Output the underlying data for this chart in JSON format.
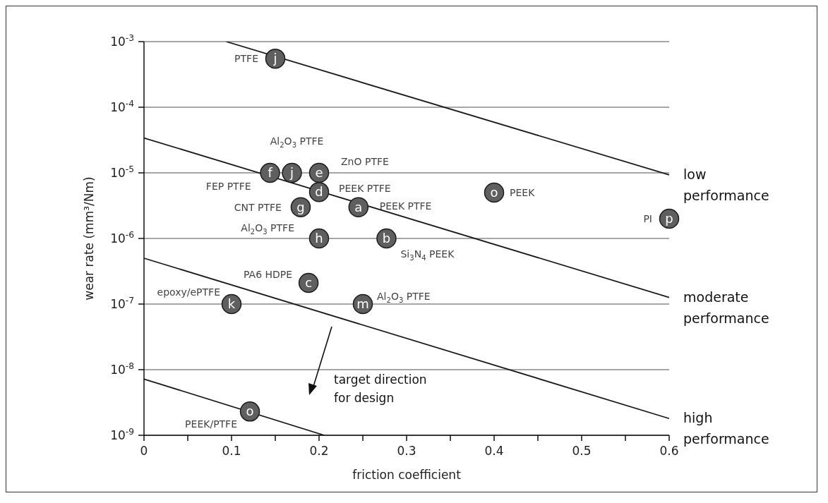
{
  "chart_data": {
    "type": "scatter",
    "xlabel": "friction coefficient",
    "ylabel": "wear rate (mm³/Nm)",
    "xlim": [
      0,
      0.6
    ],
    "xticks": [
      0,
      {
        "value": 0.05,
        "label": null
      },
      0.1,
      {
        "value": 0.15,
        "label": null
      },
      0.2,
      {
        "value": 0.25,
        "label": null
      },
      0.3,
      {
        "value": 0.35,
        "label": null
      },
      0.4,
      {
        "value": 0.45,
        "label": null
      },
      0.5,
      {
        "value": 0.55,
        "label": null
      },
      0.6
    ],
    "ylim": [
      1e-09,
      0.001
    ],
    "yticks": [
      {
        "value": 1e-09,
        "label": "10$^{-9}$"
      },
      {
        "value": 1e-08,
        "label": "10$^{-8}$"
      },
      {
        "value": 1e-07,
        "label": "10$^{-7}$"
      },
      {
        "value": 1e-06,
        "label": "10$^{-6}$"
      },
      {
        "value": 1e-05,
        "label": "10$^{-5}$"
      },
      {
        "value": 0.0001,
        "label": "10$^{-4}$"
      },
      {
        "value": 0.001,
        "label": "10$^{-3}$"
      }
    ],
    "log": "y",
    "grid": "y",
    "series": [
      {
        "type": "line",
        "name": "low performance",
        "color": "#1a1a1a",
        "x": [
          0.094,
          0.6
        ],
        "values": [
          0.001,
          9.3e-06
        ]
      },
      {
        "type": "line",
        "name": "moderate performance",
        "color": "#1a1a1a",
        "x": [
          0,
          0.6
        ],
        "values": [
          3.4e-05,
          1.26e-07
        ]
      },
      {
        "type": "line",
        "name": "high performance",
        "color": "#1a1a1a",
        "x": [
          0,
          0.6
        ],
        "values": [
          5e-07,
          1.8e-09
        ]
      },
      {
        "type": "line",
        "color": "#1a1a1a",
        "x": [
          0,
          0.206
        ],
        "values": [
          7.2e-09,
          1e-09
        ]
      },
      {
        "marker": "circle",
        "color": "#5f5f5f",
        "x": [
          0.15,
          0.144,
          0.169,
          0.2,
          0.2,
          0.179,
          0.245,
          0.2,
          0.277,
          0.188,
          0.1,
          0.25,
          0.121,
          0.4,
          0.6
        ],
        "values": [
          0.00055,
          1e-05,
          1e-05,
          1e-05,
          5.1e-06,
          3e-06,
          3e-06,
          1e-06,
          1e-06,
          2.1e-07,
          1e-07,
          1e-07,
          2.3e-09,
          5e-06,
          2e-06
        ],
        "value_labels": [
          "j",
          "f",
          "j",
          "e",
          "d",
          "g",
          "a",
          "h",
          "b",
          "c",
          "k",
          "m",
          "o",
          "o",
          "p"
        ]
      }
    ],
    "annotations": [
      {
        "text": "PTFE",
        "x": 0.15,
        "y": 0.00055
      },
      {
        "text": "Al$_{2}$O$_{3}$ PTFE",
        "x": 0.169,
        "y": 1e-05
      },
      {
        "text": "ZnO PTFE",
        "x": 0.2,
        "y": 1e-05
      },
      {
        "text": "FEP PTFE",
        "x": 0.144,
        "y": 1e-05
      },
      {
        "text": "PEEK PTFE",
        "x": 0.2,
        "y": 5.1e-06
      },
      {
        "text": "CNT PTFE",
        "x": 0.179,
        "y": 3e-06
      },
      {
        "text": "PEEK PTFE",
        "x": 0.245,
        "y": 3e-06
      },
      {
        "text": "Al$_{2}$O$_{3}$ PTFE",
        "x": 0.2,
        "y": 1e-06
      },
      {
        "text": "Si$_{3}$N$_{4}$ PEEK",
        "x": 0.277,
        "y": 1e-06
      },
      {
        "text": "PA6 HDPE",
        "x": 0.188,
        "y": 2.1e-07
      },
      {
        "text": "epoxy/ePTFE",
        "x": 0.1,
        "y": 1e-07
      },
      {
        "text": "Al$_{2}$O$_{3}$ PTFE",
        "x": 0.25,
        "y": 1e-07
      },
      {
        "text": "PEEK/PTFE",
        "x": 0.121,
        "y": 2.3e-09
      },
      {
        "text": "PEEK",
        "x": 0.4,
        "y": 5e-06
      },
      {
        "text": "PI",
        "x": 0.6,
        "y": 2e-06
      },
      "target direction for design"
    ]
  }
}
